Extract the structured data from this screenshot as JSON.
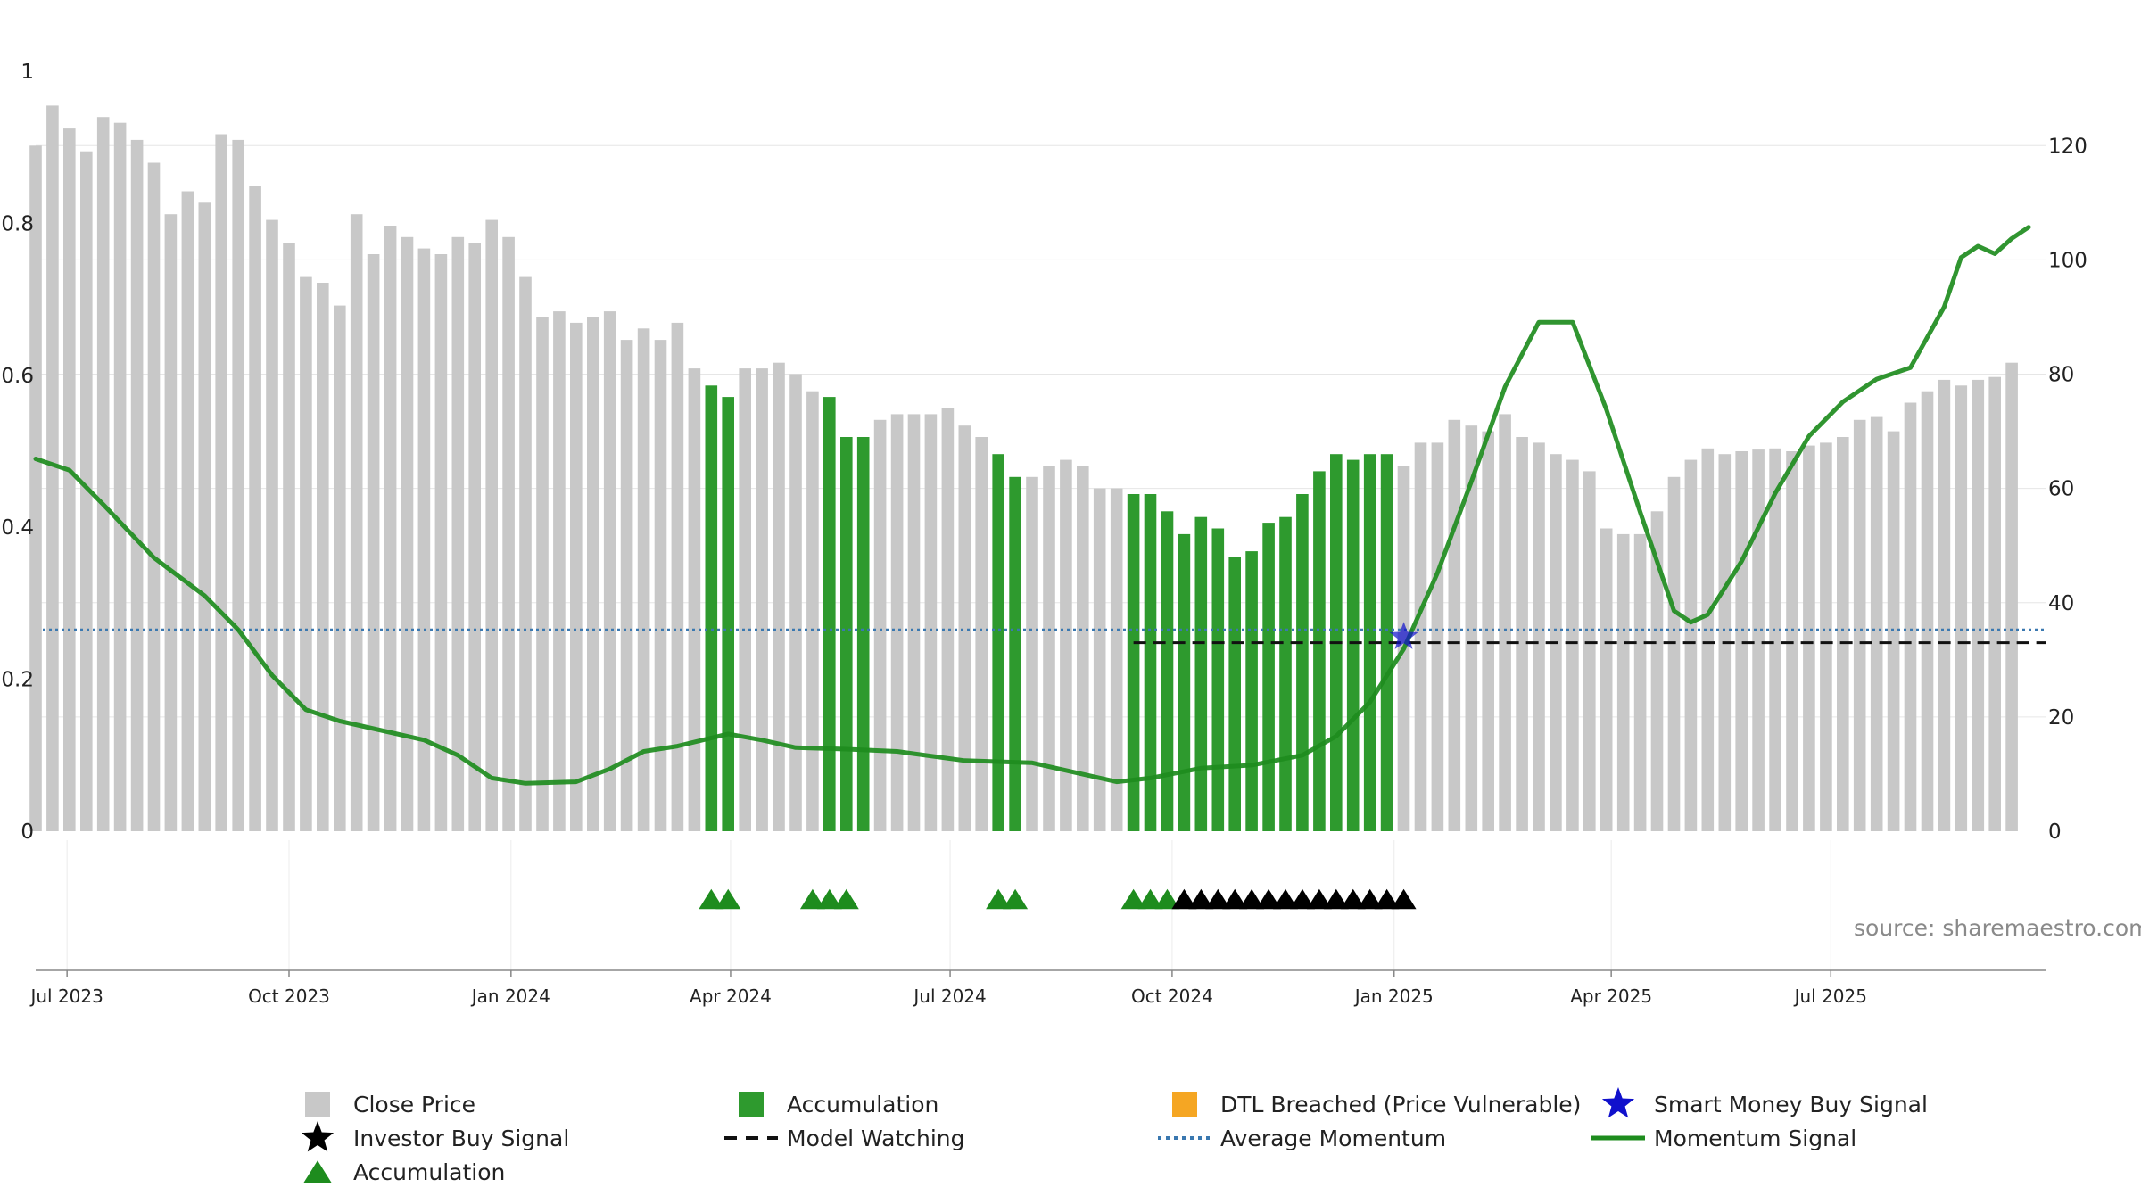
{
  "source": "source: sharemaestro.com",
  "colors": {
    "close": "#c8c8c8",
    "accumulation_bar": "#2e9a2e",
    "dtl": "#f5a623",
    "smart_money": "#1010cc",
    "investor": "#000000",
    "accum_marker": "#1e8c1e",
    "model_watching": "#111111",
    "avg_momentum": "#3a78b0",
    "momentum": "#1e8c1e"
  },
  "chart_data": {
    "type": "bar",
    "title": "",
    "left_axis": {
      "ylim": [
        0,
        1
      ],
      "ticks": [
        0,
        0.2,
        0.4,
        0.6,
        0.8,
        1
      ],
      "tick_labels": [
        "0",
        "0.2",
        "0.4",
        "0.6",
        "0.8",
        "1"
      ]
    },
    "right_axis": {
      "ylim": [
        0,
        133
      ],
      "ticks": [
        0,
        20,
        40,
        60,
        80,
        100,
        120
      ],
      "tick_labels": [
        "0",
        "20",
        "40",
        "60",
        "80",
        "100",
        "120"
      ]
    },
    "x_range": [
      "2023-06-18",
      "2025-09-28"
    ],
    "x_ticks": [
      {
        "date": "2023-07-01",
        "label": "Jul 2023"
      },
      {
        "date": "2023-10-01",
        "label": "Oct 2023"
      },
      {
        "date": "2024-01-01",
        "label": "Jan 2024"
      },
      {
        "date": "2024-04-01",
        "label": "Apr 2024"
      },
      {
        "date": "2024-07-01",
        "label": "Jul 2024"
      },
      {
        "date": "2024-10-01",
        "label": "Oct 2024"
      },
      {
        "date": "2025-01-01",
        "label": "Jan 2025"
      },
      {
        "date": "2025-04-01",
        "label": "Apr 2025"
      },
      {
        "date": "2025-07-01",
        "label": "Jul 2025"
      }
    ],
    "bar_start": "2023-06-18",
    "bar_interval_days": 7,
    "close_price": [
      120,
      127,
      123,
      119,
      125,
      124,
      121,
      117,
      108,
      112,
      110,
      122,
      121,
      113,
      107,
      103,
      97,
      96,
      92,
      108,
      101,
      106,
      104,
      102,
      101,
      104,
      103,
      107,
      104,
      97,
      90,
      91,
      89,
      90,
      91,
      86,
      88,
      86,
      89,
      81,
      78,
      76,
      81,
      81,
      82,
      80,
      77,
      76,
      69,
      69,
      72,
      73,
      73,
      73,
      74,
      71,
      69,
      66,
      62,
      62,
      64,
      65,
      64,
      60,
      60,
      59,
      59,
      56,
      52,
      55,
      53,
      48,
      49,
      54,
      55,
      59,
      63,
      66,
      65,
      66,
      66,
      64,
      68,
      68,
      72,
      71,
      70,
      73,
      69,
      68,
      66,
      65,
      63,
      53,
      52,
      52,
      56,
      62,
      65,
      67,
      66,
      66.5,
      66.8,
      67,
      66.5,
      67.5,
      68,
      69,
      72,
      72.5,
      70,
      75,
      77,
      79,
      78,
      79,
      79.5,
      82
    ],
    "accumulation_bar_weeks": [
      40,
      41,
      47,
      48,
      49,
      57,
      58,
      65,
      66,
      67,
      68,
      69,
      70,
      71,
      72,
      73,
      74,
      75,
      76,
      77,
      78,
      79,
      80
    ],
    "accumulation_markers": [
      "2024-03-24",
      "2024-03-31",
      "2024-05-05",
      "2024-05-12",
      "2024-05-19",
      "2024-07-21",
      "2024-07-28",
      "2024-09-15",
      "2024-09-22",
      "2024-09-29"
    ],
    "investor_buy_signals": [
      "2024-10-06",
      "2024-10-13",
      "2024-10-20",
      "2024-10-27",
      "2024-11-03",
      "2024-11-10",
      "2024-11-17",
      "2024-11-24",
      "2024-12-01",
      "2024-12-08",
      "2024-12-15",
      "2024-12-22",
      "2024-12-29",
      "2025-01-05"
    ],
    "smart_money_buy_signal": {
      "date": "2025-01-05",
      "value": 34
    },
    "model_watching": {
      "start": "2024-09-15",
      "end": "2025-09-28",
      "value": 33
    },
    "average_momentum": 0.265,
    "momentum_signal": [
      {
        "date": "2023-06-18",
        "v": 0.49
      },
      {
        "date": "2023-07-02",
        "v": 0.475
      },
      {
        "date": "2023-07-16",
        "v": 0.43
      },
      {
        "date": "2023-08-06",
        "v": 0.36
      },
      {
        "date": "2023-08-27",
        "v": 0.31
      },
      {
        "date": "2023-09-10",
        "v": 0.265
      },
      {
        "date": "2023-09-24",
        "v": 0.205
      },
      {
        "date": "2023-10-08",
        "v": 0.16
      },
      {
        "date": "2023-10-22",
        "v": 0.145
      },
      {
        "date": "2023-11-05",
        "v": 0.135
      },
      {
        "date": "2023-11-26",
        "v": 0.12
      },
      {
        "date": "2023-12-10",
        "v": 0.1
      },
      {
        "date": "2023-12-24",
        "v": 0.07
      },
      {
        "date": "2024-01-07",
        "v": 0.063
      },
      {
        "date": "2024-01-28",
        "v": 0.065
      },
      {
        "date": "2024-02-11",
        "v": 0.082
      },
      {
        "date": "2024-02-25",
        "v": 0.105
      },
      {
        "date": "2024-03-10",
        "v": 0.112
      },
      {
        "date": "2024-03-31",
        "v": 0.128
      },
      {
        "date": "2024-04-14",
        "v": 0.12
      },
      {
        "date": "2024-04-28",
        "v": 0.11
      },
      {
        "date": "2024-05-19",
        "v": 0.108
      },
      {
        "date": "2024-06-09",
        "v": 0.105
      },
      {
        "date": "2024-07-07",
        "v": 0.093
      },
      {
        "date": "2024-08-04",
        "v": 0.09
      },
      {
        "date": "2024-08-25",
        "v": 0.075
      },
      {
        "date": "2024-09-08",
        "v": 0.065
      },
      {
        "date": "2024-09-22",
        "v": 0.07
      },
      {
        "date": "2024-10-13",
        "v": 0.083
      },
      {
        "date": "2024-11-03",
        "v": 0.087
      },
      {
        "date": "2024-11-24",
        "v": 0.1
      },
      {
        "date": "2024-12-08",
        "v": 0.125
      },
      {
        "date": "2024-12-22",
        "v": 0.17
      },
      {
        "date": "2025-01-05",
        "v": 0.24
      },
      {
        "date": "2025-01-19",
        "v": 0.34
      },
      {
        "date": "2025-02-02",
        "v": 0.46
      },
      {
        "date": "2025-02-16",
        "v": 0.585
      },
      {
        "date": "2025-03-02",
        "v": 0.67
      },
      {
        "date": "2025-03-16",
        "v": 0.67
      },
      {
        "date": "2025-03-30",
        "v": 0.555
      },
      {
        "date": "2025-04-13",
        "v": 0.42
      },
      {
        "date": "2025-04-27",
        "v": 0.29
      },
      {
        "date": "2025-05-04",
        "v": 0.275
      },
      {
        "date": "2025-05-11",
        "v": 0.285
      },
      {
        "date": "2025-05-25",
        "v": 0.355
      },
      {
        "date": "2025-06-08",
        "v": 0.445
      },
      {
        "date": "2025-06-22",
        "v": 0.52
      },
      {
        "date": "2025-07-06",
        "v": 0.565
      },
      {
        "date": "2025-07-20",
        "v": 0.595
      },
      {
        "date": "2025-08-03",
        "v": 0.61
      },
      {
        "date": "2025-08-17",
        "v": 0.69
      },
      {
        "date": "2025-08-24",
        "v": 0.755
      },
      {
        "date": "2025-08-31",
        "v": 0.77
      },
      {
        "date": "2025-09-07",
        "v": 0.76
      },
      {
        "date": "2025-09-14",
        "v": 0.78
      },
      {
        "date": "2025-09-21",
        "v": 0.795
      }
    ],
    "legend": [
      {
        "label": "Close Price",
        "symbol": "gray-square"
      },
      {
        "label": "Accumulation",
        "symbol": "green-square"
      },
      {
        "label": "DTL Breached (Price Vulnerable)",
        "symbol": "orange-square"
      },
      {
        "label": "Smart Money Buy Signal",
        "symbol": "blue-star"
      },
      {
        "label": "Investor Buy Signal",
        "symbol": "black-star"
      },
      {
        "label": "Model Watching",
        "symbol": "dashed-line"
      },
      {
        "label": "Average Momentum",
        "symbol": "dotted-line"
      },
      {
        "label": "Momentum Signal",
        "symbol": "green-line"
      },
      {
        "label": "Accumulation",
        "symbol": "green-triangle"
      }
    ]
  }
}
